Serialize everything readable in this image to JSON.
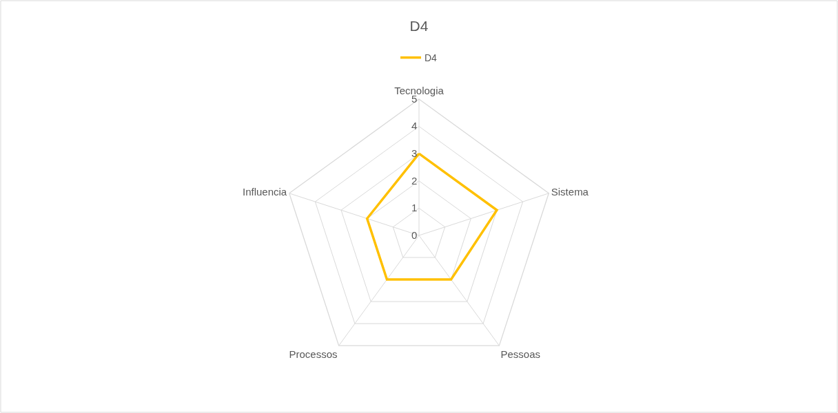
{
  "chart_data": {
    "type": "radar",
    "title": "D4",
    "categories": [
      "Tecnologia",
      "Sistema",
      "Pessoas",
      "Processos",
      "Influencia"
    ],
    "series": [
      {
        "name": "D4",
        "color": "#ffc000",
        "values": [
          3,
          3,
          2,
          2,
          2
        ]
      }
    ],
    "ylim": [
      0,
      5
    ],
    "yticks": [
      0,
      1,
      2,
      3,
      4,
      5
    ],
    "grid": true,
    "legend": "top",
    "marker": "none",
    "line_style": "solid"
  }
}
